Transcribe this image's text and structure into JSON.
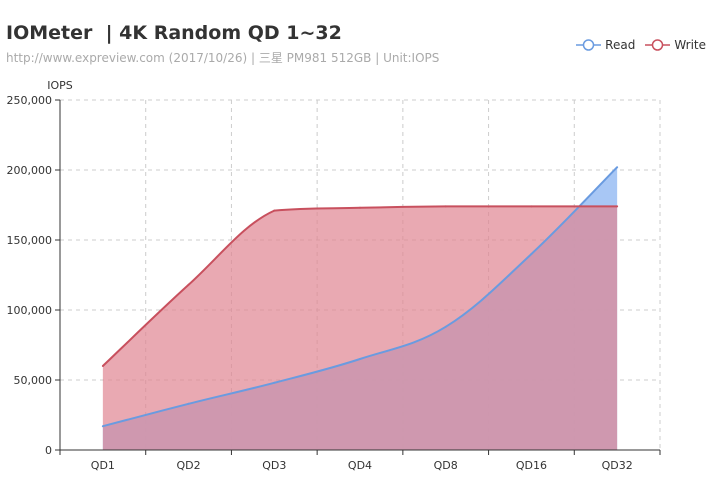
{
  "header": {
    "title": "IOMeter  | 4K Random QD 1~32",
    "subtitle": "http://www.expreview.com (2017/10/26) | 三星 PM981 512GB | Unit:IOPS"
  },
  "legend": [
    {
      "label": "Read",
      "color": "#6a9be0"
    },
    {
      "label": "Write",
      "color": "#c8505e"
    }
  ],
  "chart_data": {
    "type": "area",
    "title": "IOMeter  | 4K Random QD 1~32",
    "subtitle": "http://www.expreview.com (2017/10/26) | 三星 PM981 512GB | Unit:IOPS",
    "ylabel": "IOPS",
    "xlabel": "",
    "categories": [
      "QD1",
      "QD2",
      "QD3",
      "QD4",
      "QD8",
      "QD16",
      "QD32"
    ],
    "ylim": [
      0,
      250000
    ],
    "yticks": [
      0,
      50000,
      100000,
      150000,
      200000,
      250000
    ],
    "ytick_labels": [
      "0",
      "50,000",
      "100,000",
      "150,000",
      "200,000",
      "250,000"
    ],
    "grid": true,
    "legend_position": "top-right",
    "series": [
      {
        "name": "Read",
        "values": [
          17000,
          33000,
          48000,
          65000,
          88000,
          140000,
          202000
        ],
        "color": "#6a9be0",
        "fill": "#9fc1f4"
      },
      {
        "name": "Write",
        "values": [
          60000,
          118000,
          171000,
          173000,
          174000,
          174000,
          174000
        ],
        "color": "#c8505e",
        "fill": "#e08592"
      }
    ]
  }
}
